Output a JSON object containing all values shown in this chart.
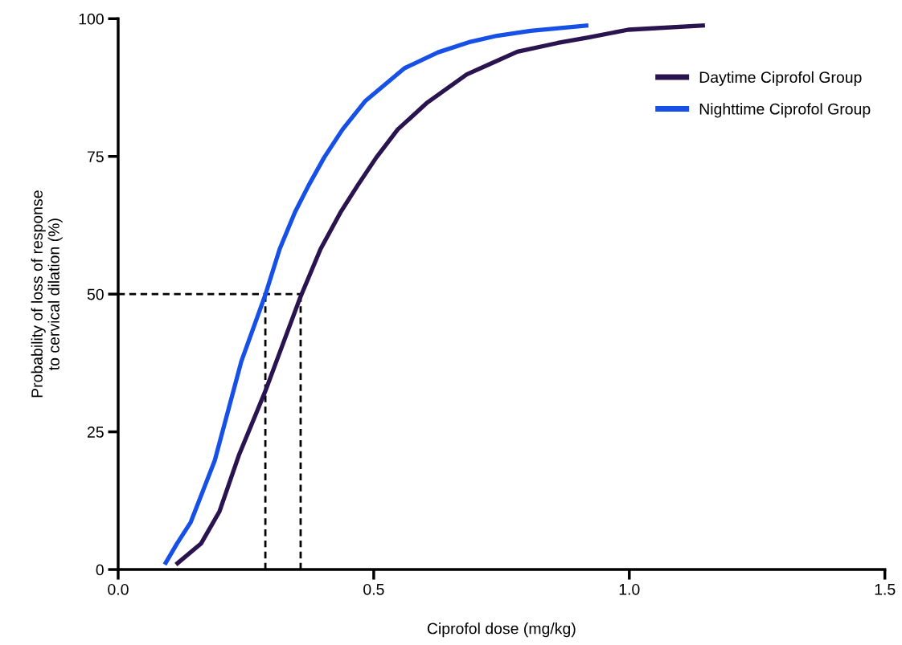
{
  "chart_data": {
    "type": "line",
    "xlabel": "Ciprofol dose (mg/kg)",
    "ylabel": "Probability of loss of response\nto cervical dilation (%)",
    "xlim": [
      0,
      1.5
    ],
    "xticks": [
      {
        "value": 0,
        "label": "0.0"
      },
      0.5,
      {
        "value": 1,
        "label": "1.0"
      },
      1.5
    ],
    "ylim": [
      0,
      100
    ],
    "yticks": [
      0,
      25,
      50,
      75,
      100
    ],
    "grid": false,
    "legend": "top right",
    "line_style": "solid",
    "marker": "none",
    "series": [
      {
        "name": "Daytime Ciprofol Group",
        "color": "#2a1450",
        "x": [
          0.113,
          0.162,
          0.198,
          0.236,
          0.288,
          0.355,
          0.396,
          0.436,
          0.469,
          0.505,
          0.547,
          0.605,
          0.682,
          0.728,
          0.781,
          0.86,
          0.92,
          0.998,
          1.148
        ],
        "values": [
          0.9,
          4.7,
          10.5,
          20.7,
          32.4,
          49.1,
          58.2,
          65.0,
          69.8,
          74.8,
          79.9,
          84.8,
          89.9,
          91.8,
          94.0,
          95.6,
          96.6,
          98.0,
          98.8
        ]
      },
      {
        "name": "Nighttime Ciprofol Group",
        "color": "#1650e6",
        "x": [
          0.091,
          0.115,
          0.142,
          0.189,
          0.241,
          0.288,
          0.316,
          0.346,
          0.373,
          0.403,
          0.439,
          0.484,
          0.56,
          0.626,
          0.689,
          0.741,
          0.807,
          0.92
        ],
        "values": [
          0.9,
          4.7,
          8.6,
          19.8,
          37.8,
          49.9,
          58.2,
          64.9,
          69.8,
          74.8,
          79.9,
          85.1,
          91.0,
          93.9,
          95.8,
          96.9,
          97.8,
          98.8
        ]
      }
    ],
    "ref_lines": [
      {
        "axis": "y",
        "value": 50,
        "color": "#000000",
        "line_style": "dashed"
      },
      {
        "axis": "x",
        "value": 0.288,
        "color": "#000000",
        "line_style": "dashed"
      },
      {
        "axis": "x",
        "value": 0.357,
        "color": "#000000",
        "line_style": "dashed"
      }
    ]
  }
}
